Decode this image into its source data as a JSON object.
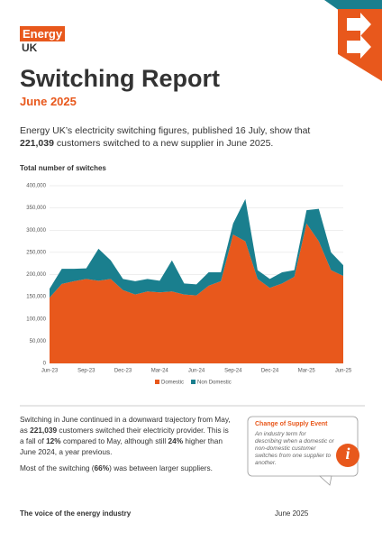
{
  "logo": {
    "top": "Energy",
    "bottom": "UK"
  },
  "header": {
    "title": "Switching Report",
    "subtitle": "June 2025"
  },
  "intro": [
    {
      "text": "Energy UK’s electricity switching figures, published 16 July, show that "
    },
    {
      "text": "221,039",
      "bold": true
    },
    {
      "text": " customers switched to a new supplier in June 2025."
    }
  ],
  "chart_data": {
    "type": "stacked-area",
    "title": "Total number of switches",
    "categories": [
      "Jun-23",
      null,
      null,
      "Sep-23",
      null,
      null,
      "Dec-23",
      null,
      null,
      "Mar-24",
      null,
      null,
      "Jun-24",
      null,
      null,
      "Sep-24",
      null,
      null,
      "Dec-24",
      null,
      null,
      "Mar-25",
      null,
      null,
      "Jun-25"
    ],
    "series": [
      {
        "name": "Domestic",
        "color": "#e8581c",
        "values": [
          148000,
          179000,
          185000,
          190000,
          186000,
          190000,
          165000,
          155000,
          162000,
          160000,
          162000,
          155000,
          153000,
          175000,
          185000,
          290000,
          275000,
          190000,
          170000,
          180000,
          195000,
          315000,
          275000,
          210000,
          197000
        ]
      },
      {
        "name": "Non Domestic",
        "color": "#1a7f8e",
        "values": [
          20000,
          34000,
          28000,
          24000,
          72000,
          42000,
          25000,
          30000,
          28000,
          26000,
          70000,
          25000,
          25000,
          30000,
          20000,
          25000,
          95000,
          20000,
          20000,
          25000,
          15000,
          30000,
          73000,
          40000,
          24000
        ]
      }
    ],
    "ylim": [
      0,
      400000
    ],
    "yticks": [
      0,
      {
        "value": 50000,
        "label": "50,000"
      },
      {
        "value": 100000,
        "label": "100,000"
      },
      {
        "value": 150000,
        "label": "150,000"
      },
      {
        "value": 200000,
        "label": "200,000"
      },
      {
        "value": 250000,
        "label": "250,000"
      },
      {
        "value": 300000,
        "label": "300,000"
      },
      {
        "value": 350000,
        "label": "350,000"
      },
      {
        "value": 400000,
        "label": "400,000"
      }
    ],
    "grid": true,
    "legend": "bottom"
  },
  "body": [
    [
      {
        "text": "Switching in June continued in a downward trajectory from May, as "
      },
      {
        "text": "221,039",
        "bold": true
      },
      {
        "text": " customers switched their electricity provider. This is a fall of "
      },
      {
        "text": "12%",
        "bold": true
      },
      {
        "text": " compared to May, although still "
      },
      {
        "text": "24%",
        "bold": true
      },
      {
        "text": " higher than June 2024, a year previous."
      }
    ],
    [
      {
        "text": "Most of the switching ("
      },
      {
        "text": "66%",
        "bold": true
      },
      {
        "text": ") was between larger suppliers."
      }
    ]
  ],
  "sidebar": {
    "title": "Change of Supply Event",
    "text": "An industry term for describing when a domestic or non-domestic customer switches from one supplier to another.",
    "icon": "i"
  },
  "footer": {
    "tagline": "The voice of the energy industry",
    "date": "June 2025"
  }
}
